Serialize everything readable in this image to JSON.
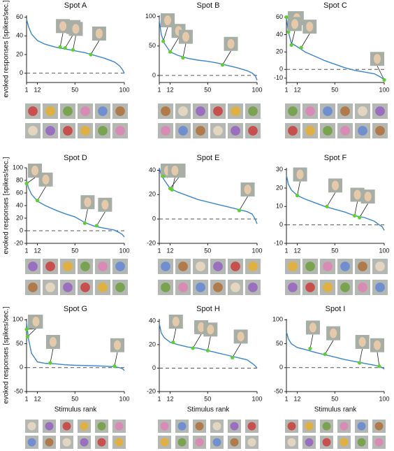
{
  "chart_data": [
    {
      "type": "line",
      "title": "Spot A",
      "y_label": "evoked responses [spikes/sec.]",
      "xlim": [
        1,
        100
      ],
      "xticks": [
        1,
        12,
        50,
        100
      ],
      "ylim": [
        -10,
        62
      ],
      "yticks": [
        0,
        20,
        40,
        60
      ],
      "color": "#3a86d0",
      "marker_color": "#5ad22a",
      "x": [
        1,
        3,
        6,
        12,
        20,
        30,
        40,
        50,
        60,
        70,
        80,
        90,
        95,
        98,
        100
      ],
      "values": [
        58,
        50,
        42,
        35,
        31,
        28,
        26,
        24,
        22,
        19,
        16,
        12,
        8,
        4,
        0
      ],
      "markers": {
        "x": [
          35,
          40,
          48,
          66
        ],
        "values": [
          28,
          27,
          25,
          20
        ]
      }
    },
    {
      "type": "line",
      "title": "Spot B",
      "xlim": [
        1,
        100
      ],
      "xticks": [
        1,
        12,
        50,
        100
      ],
      "ylim": [
        -12,
        102
      ],
      "yticks": [
        0,
        50,
        100
      ],
      "color": "#3a86d0",
      "marker_color": "#5ad22a",
      "x": [
        1,
        3,
        6,
        12,
        20,
        30,
        40,
        50,
        60,
        70,
        80,
        90,
        95,
        98,
        100
      ],
      "values": [
        95,
        70,
        55,
        40,
        34,
        29,
        26,
        24,
        21,
        17,
        13,
        8,
        4,
        0,
        -8
      ],
      "markers": {
        "x": [
          5,
          12,
          25,
          65
        ],
        "values": [
          58,
          40,
          30,
          18
        ]
      }
    },
    {
      "type": "line",
      "title": "Spot C",
      "xlim": [
        1,
        100
      ],
      "xticks": [
        1,
        12,
        50,
        100
      ],
      "ylim": [
        -15,
        62
      ],
      "yticks": [
        -10,
        0,
        20,
        40,
        60
      ],
      "color": "#3a86d0",
      "marker_color": "#5ad22a",
      "x": [
        1,
        3,
        6,
        12,
        20,
        30,
        40,
        50,
        60,
        70,
        80,
        90,
        95,
        98,
        100
      ],
      "values": [
        60,
        43,
        30,
        26,
        20,
        15,
        10,
        6,
        2,
        -1,
        -3,
        -5,
        -8,
        -10,
        -12
      ],
      "markers": {
        "x": [
          1,
          3,
          6,
          16,
          100
        ],
        "values": [
          60,
          43,
          28,
          25,
          -12
        ]
      }
    },
    {
      "type": "line",
      "title": "Spot D",
      "y_label": "evoked responses [spikes/sec.]",
      "xlim": [
        1,
        100
      ],
      "xticks": [
        1,
        12,
        50,
        100
      ],
      "ylim": [
        -20,
        100
      ],
      "yticks": [
        -20,
        0,
        20,
        40,
        60,
        80,
        100
      ],
      "color": "#3a86d0",
      "marker_color": "#5ad22a",
      "x": [
        1,
        3,
        6,
        12,
        20,
        30,
        40,
        50,
        60,
        70,
        80,
        90,
        95,
        98,
        100
      ],
      "values": [
        80,
        68,
        58,
        47,
        40,
        33,
        27,
        22,
        13,
        7,
        4,
        1,
        -3,
        -6,
        -10
      ],
      "markers": {
        "x": [
          1,
          12,
          60,
          72
        ],
        "values": [
          75,
          48,
          12,
          8
        ]
      }
    },
    {
      "type": "line",
      "title": "Spot E",
      "xlim": [
        1,
        100
      ],
      "xticks": [
        1,
        12,
        50,
        100
      ],
      "ylim": [
        -20,
        42
      ],
      "yticks": [
        -20,
        0,
        20,
        40
      ],
      "color": "#3a86d0",
      "marker_color": "#5ad22a",
      "x": [
        1,
        3,
        6,
        12,
        20,
        30,
        40,
        50,
        60,
        70,
        80,
        90,
        95,
        98,
        100
      ],
      "values": [
        42,
        36,
        32,
        25,
        22,
        19,
        16,
        14,
        12,
        10,
        8,
        6,
        4,
        0,
        -4
      ],
      "markers": {
        "x": [
          5,
          12,
          14,
          82
        ],
        "values": [
          35,
          25,
          24,
          7
        ]
      }
    },
    {
      "type": "line",
      "title": "Spot F",
      "xlim": [
        1,
        100
      ],
      "xticks": [
        1,
        12,
        50,
        100
      ],
      "ylim": [
        -10,
        31
      ],
      "yticks": [
        -10,
        0,
        10,
        20,
        30
      ],
      "color": "#3a86d0",
      "marker_color": "#5ad22a",
      "x": [
        1,
        3,
        6,
        12,
        20,
        30,
        40,
        50,
        60,
        70,
        80,
        90,
        95,
        98,
        100
      ],
      "values": [
        27,
        22,
        19,
        16,
        14,
        12,
        10,
        8.5,
        7,
        5,
        4,
        2,
        0,
        -1,
        -3
      ],
      "markers": {
        "x": [
          12,
          42,
          70,
          75
        ],
        "values": [
          16,
          10,
          5,
          4
        ]
      }
    },
    {
      "type": "line",
      "title": "Spot G",
      "y_label": "evoked responses [spikes/sec.]",
      "x_label": "Stimulus rank",
      "xlim": [
        1,
        100
      ],
      "xticks": [
        1,
        12,
        50,
        100
      ],
      "ylim": [
        -50,
        102
      ],
      "yticks": [
        -50,
        0,
        50,
        100
      ],
      "color": "#3a86d0",
      "marker_color": "#5ad22a",
      "x": [
        1,
        3,
        6,
        12,
        20,
        30,
        40,
        50,
        60,
        70,
        80,
        90,
        95,
        98,
        100
      ],
      "values": [
        95,
        60,
        30,
        12,
        9,
        8,
        6,
        5,
        4.5,
        4,
        3,
        2,
        0,
        -2,
        -6
      ],
      "markers": {
        "x": [
          1,
          2,
          25,
          90
        ],
        "values": [
          80,
          65,
          10,
          3
        ]
      }
    },
    {
      "type": "line",
      "title": "Spot H",
      "x_label": "Stimulus rank",
      "xlim": [
        1,
        100
      ],
      "xticks": [
        1,
        12,
        50,
        100
      ],
      "ylim": [
        -20,
        42
      ],
      "yticks": [
        -20,
        0,
        20,
        40
      ],
      "color": "#3a86d0",
      "marker_color": "#5ad22a",
      "x": [
        1,
        3,
        6,
        12,
        20,
        30,
        40,
        50,
        60,
        70,
        80,
        90,
        95,
        98,
        100
      ],
      "values": [
        38,
        30,
        26,
        22,
        20,
        18,
        17,
        15,
        13,
        11,
        9,
        7,
        4,
        2,
        0
      ],
      "markers": {
        "x": [
          15,
          35,
          50,
          75
        ],
        "values": [
          22,
          17,
          15,
          9
        ]
      }
    },
    {
      "type": "line",
      "title": "Spot I",
      "x_label": "Stimulus rank",
      "xlim": [
        1,
        100
      ],
      "xticks": [
        1,
        12,
        50,
        100
      ],
      "ylim": [
        -50,
        102
      ],
      "yticks": [
        -50,
        0,
        50,
        100
      ],
      "color": "#3a86d0",
      "marker_color": "#5ad22a",
      "x": [
        1,
        3,
        6,
        12,
        20,
        30,
        40,
        50,
        60,
        70,
        80,
        90,
        95,
        98,
        100
      ],
      "values": [
        75,
        60,
        50,
        42,
        38,
        32,
        27,
        22,
        17,
        13,
        9,
        5,
        3,
        0,
        -3
      ],
      "markers": {
        "x": [
          25,
          40,
          75,
          95
        ],
        "values": [
          40,
          28,
          10,
          3
        ]
      }
    }
  ]
}
